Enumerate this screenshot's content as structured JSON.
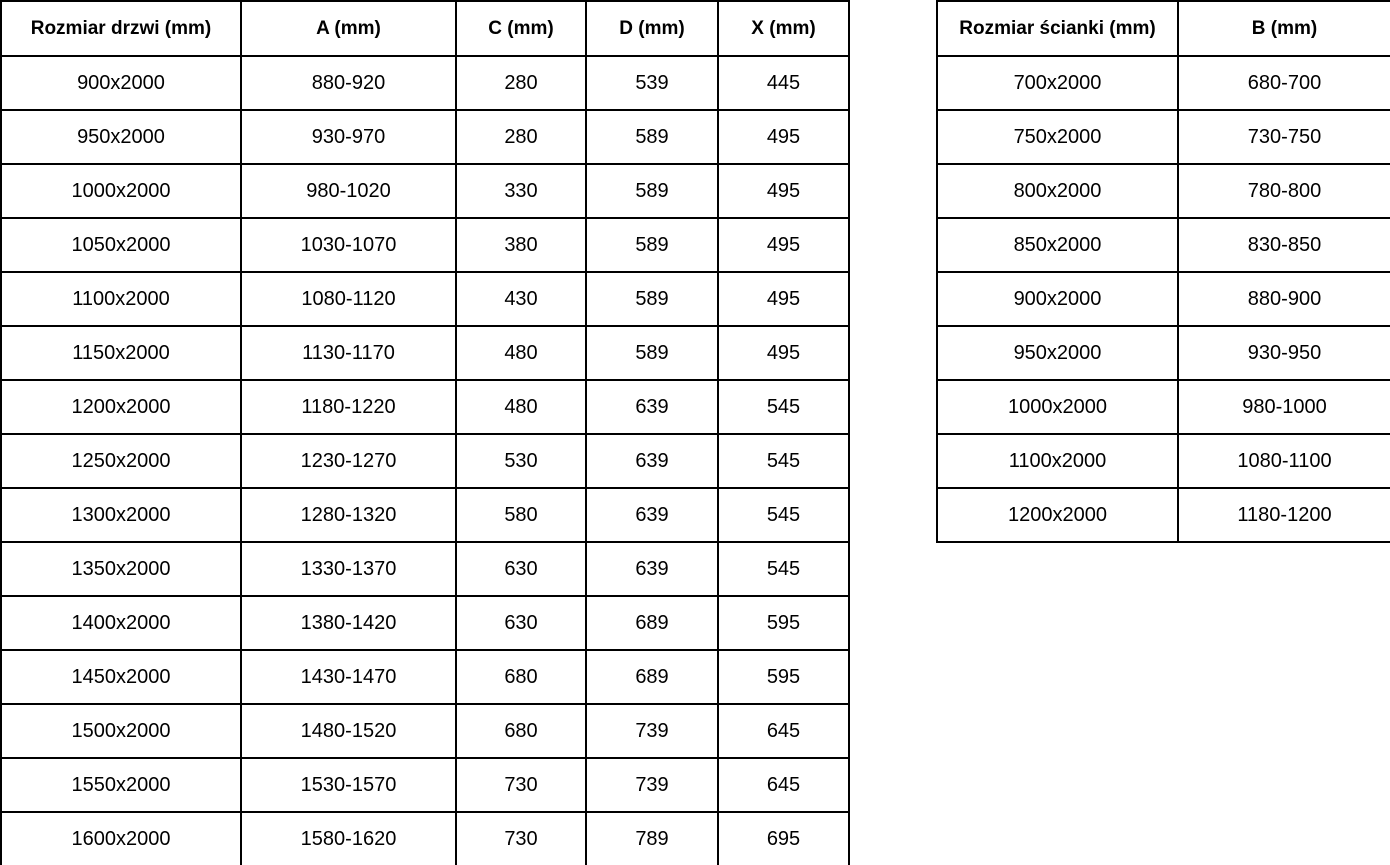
{
  "left_table": {
    "name": "door-sizes",
    "headers": [
      "Rozmiar drzwi (mm)",
      "A (mm)",
      "C (mm)",
      "D (mm)",
      "X (mm)"
    ],
    "rows": [
      [
        "900x2000",
        "880-920",
        "280",
        "539",
        "445"
      ],
      [
        "950x2000",
        "930-970",
        "280",
        "589",
        "495"
      ],
      [
        "1000x2000",
        "980-1020",
        "330",
        "589",
        "495"
      ],
      [
        "1050x2000",
        "1030-1070",
        "380",
        "589",
        "495"
      ],
      [
        "1100x2000",
        "1080-1120",
        "430",
        "589",
        "495"
      ],
      [
        "1150x2000",
        "1130-1170",
        "480",
        "589",
        "495"
      ],
      [
        "1200x2000",
        "1180-1220",
        "480",
        "639",
        "545"
      ],
      [
        "1250x2000",
        "1230-1270",
        "530",
        "639",
        "545"
      ],
      [
        "1300x2000",
        "1280-1320",
        "580",
        "639",
        "545"
      ],
      [
        "1350x2000",
        "1330-1370",
        "630",
        "639",
        "545"
      ],
      [
        "1400x2000",
        "1380-1420",
        "630",
        "689",
        "595"
      ],
      [
        "1450x2000",
        "1430-1470",
        "680",
        "689",
        "595"
      ],
      [
        "1500x2000",
        "1480-1520",
        "680",
        "739",
        "645"
      ],
      [
        "1550x2000",
        "1530-1570",
        "730",
        "739",
        "645"
      ],
      [
        "1600x2000",
        "1580-1620",
        "730",
        "789",
        "695"
      ]
    ]
  },
  "right_table": {
    "name": "wall-panel-sizes",
    "headers": [
      "Rozmiar ścianki (mm)",
      "B (mm)"
    ],
    "rows": [
      [
        "700x2000",
        "680-700"
      ],
      [
        "750x2000",
        "730-750"
      ],
      [
        "800x2000",
        "780-800"
      ],
      [
        "850x2000",
        "830-850"
      ],
      [
        "900x2000",
        "880-900"
      ],
      [
        "950x2000",
        "930-950"
      ],
      [
        "1000x2000",
        "980-1000"
      ],
      [
        "1100x2000",
        "1080-1100"
      ],
      [
        "1200x2000",
        "1180-1200"
      ]
    ]
  },
  "colors": {
    "background": "#ffffff",
    "border": "#000000",
    "text": "#000000"
  }
}
